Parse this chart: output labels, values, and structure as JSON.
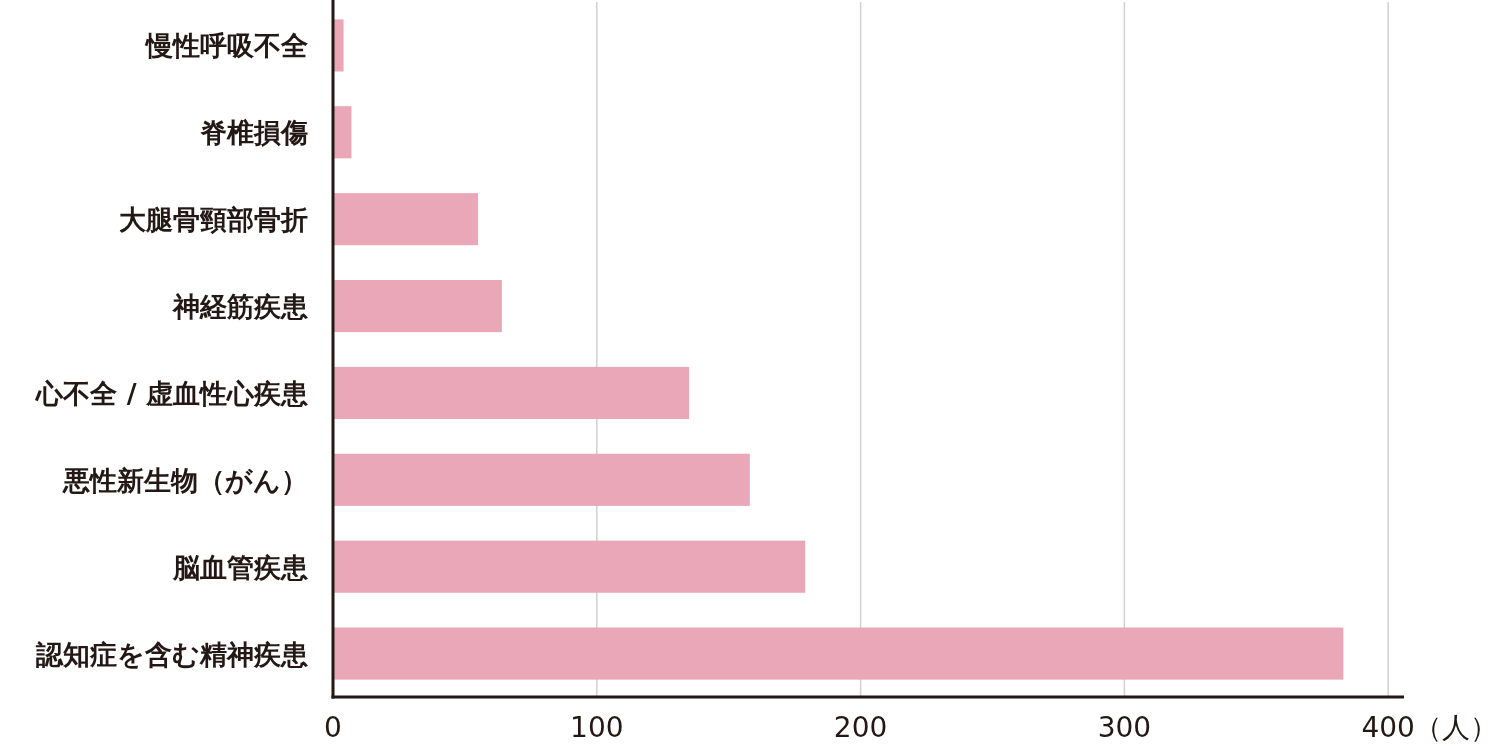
{
  "chart_data": {
    "type": "bar",
    "orientation": "horizontal",
    "xlabel": "（人）",
    "categories": [
      "慢性呼吸不全",
      "脊椎損傷",
      "大腿骨頸部骨折",
      "神経筋疾患",
      "心不全 / 虚血性心疾患",
      "悪性新生物（がん）",
      "脳血管疾患",
      "認知症を含む精神疾患"
    ],
    "values": [
      4,
      7,
      55,
      64,
      135,
      158,
      179,
      383
    ],
    "color": "#e9a7b8",
    "xlim": [
      0,
      406
    ],
    "xticks": [
      0,
      100,
      200,
      300,
      400
    ],
    "grid": "x"
  }
}
